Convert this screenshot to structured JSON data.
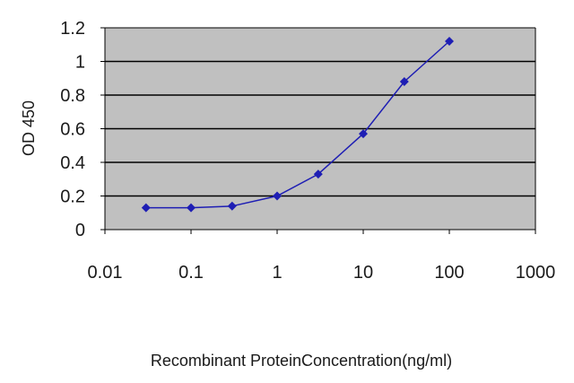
{
  "chart_data": {
    "type": "line",
    "title": "",
    "xlabel": "Recombinant ProteinConcentration(ng/ml)",
    "ylabel": "OD 450",
    "x_scale": "log",
    "xlim": [
      0.01,
      1000
    ],
    "ylim": [
      0,
      1.2
    ],
    "xticks": [
      "0.01",
      "0.1",
      "1",
      "10",
      "100",
      "1000"
    ],
    "yticks": [
      "0",
      "0.2",
      "0.4",
      "0.6",
      "0.8",
      "1",
      "1.2"
    ],
    "grid": "horizontal",
    "series": [
      {
        "x": [
          0.03,
          0.1,
          0.3,
          1,
          3,
          10,
          30,
          100
        ],
        "y": [
          0.13,
          0.13,
          0.14,
          0.2,
          0.33,
          0.57,
          0.88,
          1.12
        ]
      }
    ],
    "colors": {
      "series": "#1e1eb4",
      "plot_background": "#c0c0c0",
      "gridline": "#000000"
    }
  }
}
